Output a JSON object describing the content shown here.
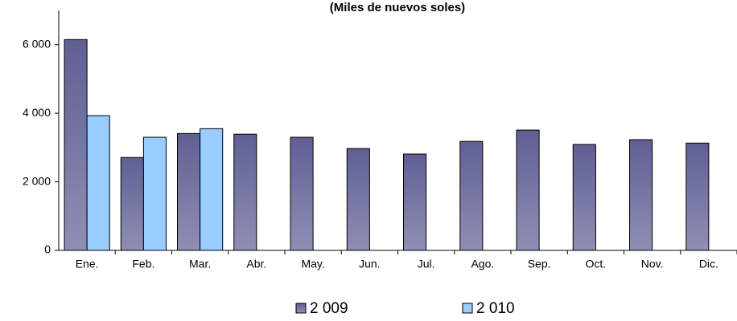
{
  "chart_data": {
    "type": "bar",
    "title": "(Miles de nuevos soles)",
    "categories": [
      "Ene.",
      "Feb.",
      "Mar.",
      "Abr.",
      "May.",
      "Jun.",
      "Jul.",
      "Ago.",
      "Sep.",
      "Oct.",
      "Nov.",
      "Dic."
    ],
    "series": [
      {
        "name": "2 009",
        "color": "#5f5f94",
        "values": [
          6150,
          2710,
          3410,
          3390,
          3300,
          2970,
          2810,
          3180,
          3510,
          3090,
          3230,
          3130
        ]
      },
      {
        "name": "2 010",
        "color": "#99ccff",
        "values": [
          3930,
          3300,
          3550,
          null,
          null,
          null,
          null,
          null,
          null,
          null,
          null,
          null
        ]
      }
    ],
    "ylim": [
      0,
      7000
    ],
    "yticks": [
      0,
      {
        "value": 2000,
        "label": "2 000"
      },
      {
        "value": 4000,
        "label": "4 000"
      },
      {
        "value": 6000,
        "label": "6 000"
      }
    ],
    "grid": false
  }
}
